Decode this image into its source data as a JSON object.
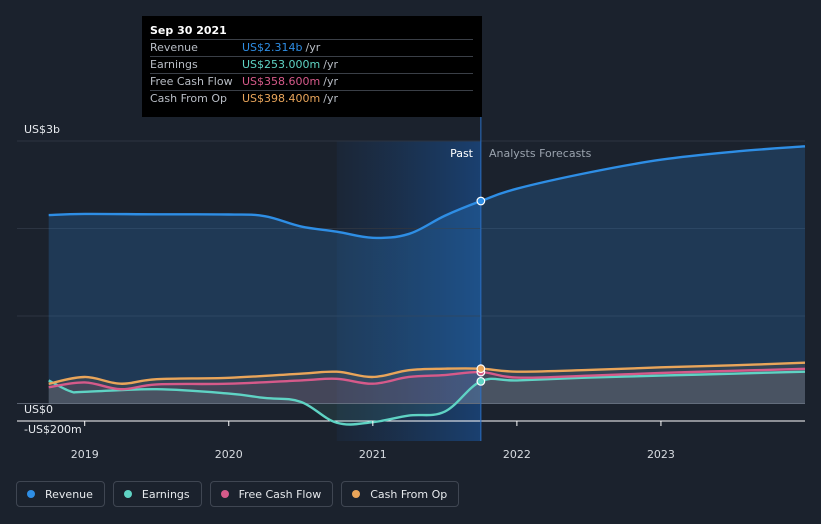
{
  "tooltip": {
    "date": "Sep 30 2021",
    "rows": [
      {
        "name": "Revenue",
        "value": "US$2.314b",
        "unit": "/yr",
        "color": "#2e8ee5"
      },
      {
        "name": "Earnings",
        "value": "US$253.000m",
        "unit": "/yr",
        "color": "#5fd3c4"
      },
      {
        "name": "Free Cash Flow",
        "value": "US$358.600m",
        "unit": "/yr",
        "color": "#d65a8a"
      },
      {
        "name": "Cash From Op",
        "value": "US$398.400m",
        "unit": "/yr",
        "color": "#e9a55a"
      }
    ]
  },
  "legend": [
    {
      "label": "Revenue",
      "color": "#2e8ee5"
    },
    {
      "label": "Earnings",
      "color": "#5fd3c4"
    },
    {
      "label": "Free Cash Flow",
      "color": "#d65a8a"
    },
    {
      "label": "Cash From Op",
      "color": "#e9a55a"
    }
  ],
  "chart_data": {
    "type": "line",
    "title": "",
    "xlabel": "",
    "ylabel": "",
    "y_axis_labels": [
      "US$3b",
      "US$0",
      "-US$200m"
    ],
    "x_tick_labels": [
      "2019",
      "2020",
      "2021",
      "2022",
      "2023"
    ],
    "x_ticks": [
      2019,
      2020,
      2021,
      2022,
      2023
    ],
    "xlim": [
      2018.53,
      2024.0
    ],
    "ylim": [
      -200,
      3000
    ],
    "divider_x": 2021.75,
    "highlight_range": [
      2020.75,
      2021.75
    ],
    "past_label": "Past",
    "forecast_label": "Analysts Forecasts",
    "series": [
      {
        "name": "Revenue",
        "color": "#2e8ee5",
        "points": [
          [
            2018.75,
            2153
          ],
          [
            2019.0,
            2166
          ],
          [
            2019.5,
            2162
          ],
          [
            2020.0,
            2160
          ],
          [
            2020.25,
            2141
          ],
          [
            2020.5,
            2024
          ],
          [
            2020.75,
            1964
          ],
          [
            2021.0,
            1894
          ],
          [
            2021.25,
            1938
          ],
          [
            2021.5,
            2146
          ],
          [
            2021.75,
            2314
          ],
          [
            2022.0,
            2455
          ],
          [
            2022.5,
            2640
          ],
          [
            2023.0,
            2786
          ],
          [
            2023.5,
            2877
          ],
          [
            2024.0,
            2939
          ]
        ]
      },
      {
        "name": "Earnings",
        "color": "#5fd3c4",
        "points": [
          [
            2018.75,
            264
          ],
          [
            2018.9,
            140
          ],
          [
            2019.0,
            134
          ],
          [
            2019.5,
            163
          ],
          [
            2020.0,
            113
          ],
          [
            2020.25,
            63
          ],
          [
            2020.5,
            19
          ],
          [
            2020.75,
            -220
          ],
          [
            2021.0,
            -213
          ],
          [
            2021.25,
            -138
          ],
          [
            2021.5,
            -92
          ],
          [
            2021.75,
            253
          ],
          [
            2022.0,
            264
          ],
          [
            2022.5,
            296
          ],
          [
            2023.0,
            319
          ],
          [
            2023.5,
            341
          ],
          [
            2024.0,
            364
          ]
        ]
      },
      {
        "name": "Free Cash Flow",
        "color": "#d65a8a",
        "points": [
          [
            2018.75,
            186
          ],
          [
            2019.0,
            241
          ],
          [
            2019.25,
            163
          ],
          [
            2019.5,
            218
          ],
          [
            2020.0,
            226
          ],
          [
            2020.5,
            264
          ],
          [
            2020.75,
            282
          ],
          [
            2021.0,
            226
          ],
          [
            2021.25,
            303
          ],
          [
            2021.5,
            325
          ],
          [
            2021.75,
            359
          ],
          [
            2022.0,
            296
          ],
          [
            2022.5,
            318
          ],
          [
            2023.0,
            349
          ],
          [
            2023.5,
            373
          ],
          [
            2024.0,
            396
          ]
        ]
      },
      {
        "name": "Cash From Op",
        "color": "#e9a55a",
        "points": [
          [
            2018.75,
            225
          ],
          [
            2019.0,
            303
          ],
          [
            2019.25,
            226
          ],
          [
            2019.5,
            278
          ],
          [
            2020.0,
            294
          ],
          [
            2020.5,
            341
          ],
          [
            2020.75,
            363
          ],
          [
            2021.0,
            303
          ],
          [
            2021.25,
            381
          ],
          [
            2021.5,
            398
          ],
          [
            2021.75,
            398
          ],
          [
            2022.0,
            364
          ],
          [
            2022.5,
            383
          ],
          [
            2023.0,
            413
          ],
          [
            2023.5,
            436
          ],
          [
            2024.0,
            467
          ]
        ]
      }
    ]
  }
}
